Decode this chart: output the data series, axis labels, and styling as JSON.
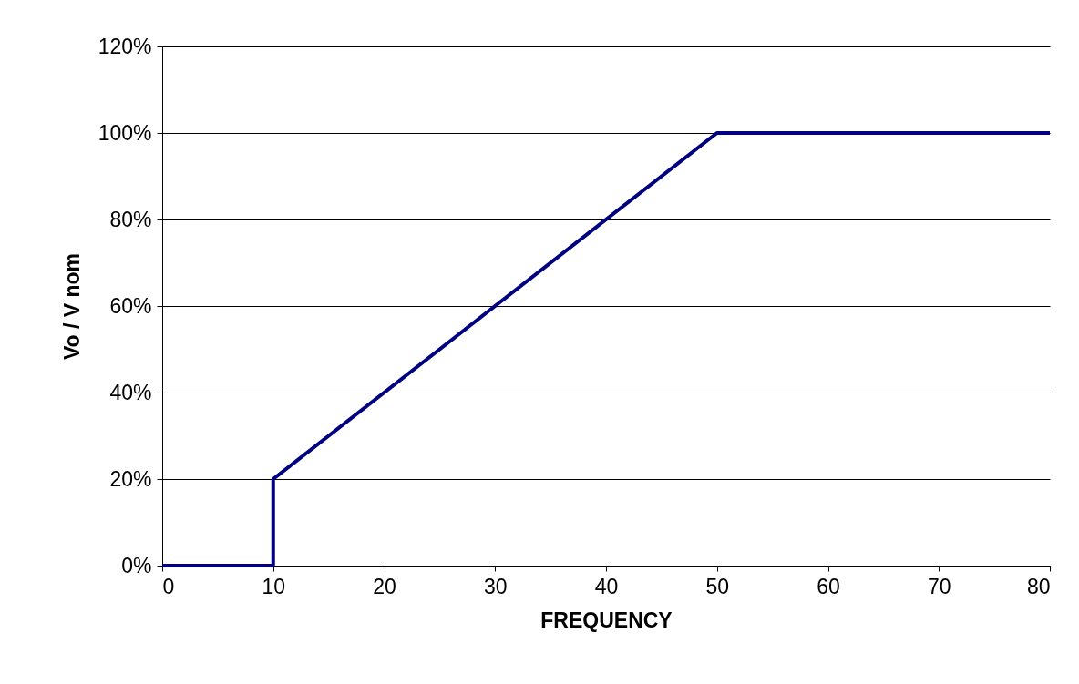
{
  "chart_data": {
    "type": "line",
    "xlabel": "FREQUENCY",
    "ylabel": "Vo / V nom",
    "x": [
      0,
      10,
      10,
      50,
      80
    ],
    "series": [
      {
        "color": "#000080",
        "values": [
          0,
          0,
          20,
          100,
          100
        ]
      }
    ],
    "xlim": [
      0,
      80
    ],
    "xticks": [
      0,
      10,
      20,
      30,
      40,
      50,
      60,
      70,
      80
    ],
    "ylim": [
      0,
      120
    ],
    "yticks": [
      {
        "value": 0,
        "label": "0%"
      },
      {
        "value": 20,
        "label": "20%"
      },
      {
        "value": 40,
        "label": "40%"
      },
      {
        "value": 60,
        "label": "60%"
      },
      {
        "value": 80,
        "label": "80%"
      },
      {
        "value": 100,
        "label": "100%"
      },
      {
        "value": 120,
        "label": "120%"
      }
    ],
    "grid": "y",
    "marker": "none",
    "line_style": "solid"
  }
}
